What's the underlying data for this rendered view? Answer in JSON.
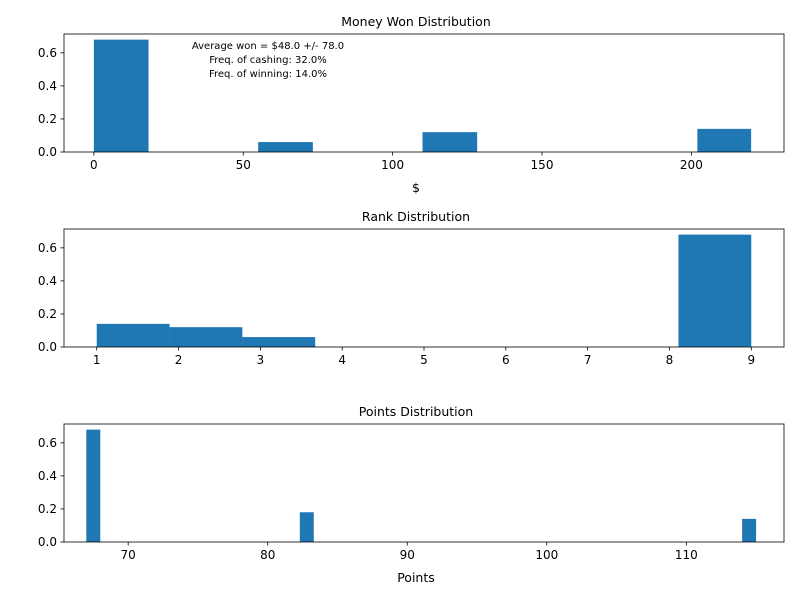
{
  "chart_data": [
    {
      "type": "bar",
      "title": "Money Won Distribution",
      "xlabel": "$",
      "ylabel": "",
      "color": "#1f77b4",
      "xlim": [
        -10,
        231
      ],
      "ylim": [
        0,
        0.714
      ],
      "xticks": [
        0,
        50,
        100,
        150,
        200
      ],
      "yticks": [
        0.0,
        0.2,
        0.4,
        0.6
      ],
      "xtick_labels": [
        "0",
        "50",
        "100",
        "150",
        "200"
      ],
      "ytick_labels": [
        "0.0",
        "0.2",
        "0.4",
        "0.6"
      ],
      "bins": [
        {
          "x0": 0,
          "x1": 18.3,
          "value": 0.68
        },
        {
          "x0": 55,
          "x1": 73.3,
          "value": 0.06
        },
        {
          "x0": 110,
          "x1": 128.3,
          "value": 0.12
        },
        {
          "x0": 202,
          "x1": 220,
          "value": 0.14
        }
      ],
      "annotations": [
        "Average won = $48.0 +/- 78.0",
        "Freq. of cashing: 32.0%",
        "Freq. of winning: 14.0%"
      ]
    },
    {
      "type": "bar",
      "title": "Rank Distribution",
      "xlabel": "",
      "ylabel": "",
      "color": "#1f77b4",
      "xlim": [
        0.6,
        9.4
      ],
      "ylim": [
        0,
        0.714
      ],
      "xticks": [
        1,
        2,
        3,
        4,
        5,
        6,
        7,
        8,
        9
      ],
      "yticks": [
        0.0,
        0.2,
        0.4,
        0.6
      ],
      "xtick_labels": [
        "1",
        "2",
        "3",
        "4",
        "5",
        "6",
        "7",
        "8",
        "9"
      ],
      "ytick_labels": [
        "0.0",
        "0.2",
        "0.4",
        "0.6"
      ],
      "bins": [
        {
          "x0": 1.0,
          "x1": 1.89,
          "value": 0.14
        },
        {
          "x0": 1.89,
          "x1": 2.78,
          "value": 0.12
        },
        {
          "x0": 2.78,
          "x1": 3.67,
          "value": 0.06
        },
        {
          "x0": 8.11,
          "x1": 9.0,
          "value": 0.68
        }
      ]
    },
    {
      "type": "bar",
      "title": "Points Distribution",
      "xlabel": "Points",
      "ylabel": "",
      "color": "#1f77b4",
      "xlim": [
        65.4,
        117.0
      ],
      "ylim": [
        0,
        0.714
      ],
      "xticks": [
        70,
        80,
        90,
        100,
        110
      ],
      "yticks": [
        0.0,
        0.2,
        0.4,
        0.6
      ],
      "xtick_labels": [
        "70",
        "80",
        "90",
        "100",
        "110"
      ],
      "ytick_labels": [
        "0.0",
        "0.2",
        "0.4",
        "0.6"
      ],
      "bins": [
        {
          "x0": 67.0,
          "x1": 68.0,
          "value": 0.68
        },
        {
          "x0": 82.3,
          "x1": 83.3,
          "value": 0.18
        },
        {
          "x0": 114.0,
          "x1": 115.0,
          "value": 0.14
        }
      ]
    }
  ]
}
